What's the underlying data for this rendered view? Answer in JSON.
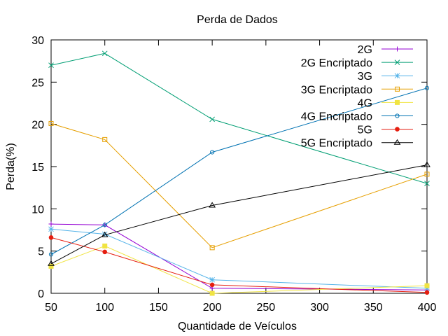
{
  "chart_data": {
    "type": "line",
    "title": "Perda de Dados",
    "xlabel": "Quantidade de Veículos",
    "ylabel": "Perda(%)",
    "xlim": [
      50,
      400
    ],
    "ylim": [
      0,
      30
    ],
    "xticks": [
      50,
      100,
      150,
      200,
      250,
      300,
      350,
      400
    ],
    "yticks": [
      0,
      5,
      10,
      15,
      20,
      25,
      30
    ],
    "grid": false,
    "legend_position": "top-right",
    "x": [
      50,
      100,
      200,
      400
    ],
    "series": [
      {
        "name": "2G",
        "values": [
          8.2,
          8.1,
          0.6,
          0.4
        ],
        "color": "#9400d3",
        "marker": "plus"
      },
      {
        "name": "2G Encriptado",
        "values": [
          27.0,
          28.4,
          20.6,
          13.0
        ],
        "color": "#009e73",
        "marker": "cross"
      },
      {
        "name": "3G",
        "values": [
          7.6,
          7.0,
          1.6,
          0.6
        ],
        "color": "#56b4e9",
        "marker": "star"
      },
      {
        "name": "3G Encriptado",
        "values": [
          20.1,
          18.2,
          5.4,
          14.1
        ],
        "color": "#e69f00",
        "marker": "square-open"
      },
      {
        "name": "4G",
        "values": [
          3.2,
          5.6,
          0.0,
          0.9
        ],
        "color": "#f0e442",
        "marker": "square-filled"
      },
      {
        "name": "4G Encriptado",
        "values": [
          4.6,
          8.1,
          16.7,
          24.3
        ],
        "color": "#0072b2",
        "marker": "circle-open"
      },
      {
        "name": "5G",
        "values": [
          6.6,
          4.9,
          1.0,
          0.1
        ],
        "color": "#e51e10",
        "marker": "circle-filled"
      },
      {
        "name": "5G Encriptado",
        "values": [
          3.5,
          6.9,
          10.4,
          15.2
        ],
        "color": "#000000",
        "marker": "triangle-open"
      }
    ]
  }
}
